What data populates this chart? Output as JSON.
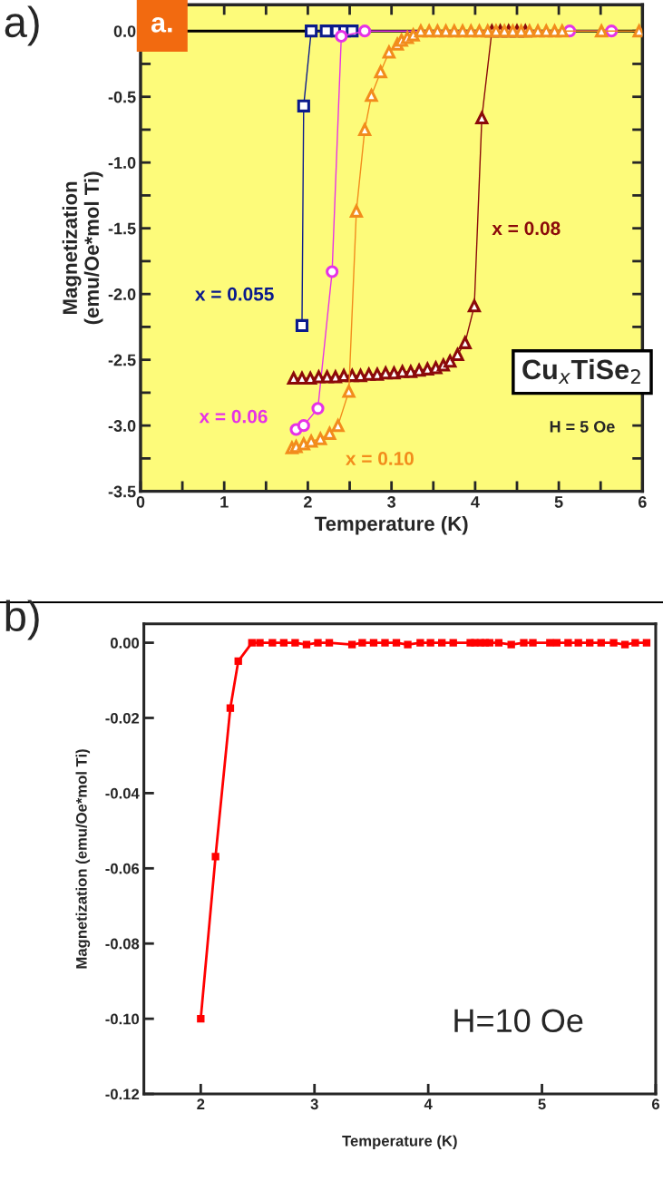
{
  "chart_data": [
    {
      "type": "line",
      "title": "a)",
      "xlabel": "Temperature (K)",
      "ylabel": "Magnetization\n(emu/Oe*mol Ti)",
      "xlim": [
        0,
        6
      ],
      "xticks": [
        0,
        {
          "value": 0.5,
          "label": null
        },
        1,
        {
          "value": 1.5,
          "label": null
        },
        2,
        {
          "value": 2.5,
          "label": null
        },
        3,
        {
          "value": 3.5,
          "label": null
        },
        4,
        {
          "value": 4.5,
          "label": null
        },
        5,
        {
          "value": 5.5,
          "label": null
        },
        6
      ],
      "ylim": [
        -3.5,
        0.2
      ],
      "yticks": [
        {
          "value": 0,
          "label": "0.0"
        },
        {
          "value": -0.25,
          "label": null
        },
        -0.5,
        {
          "value": -0.75,
          "label": null
        },
        {
          "value": -1,
          "label": "-1.0"
        },
        {
          "value": -1.25,
          "label": null
        },
        -1.5,
        {
          "value": -1.75,
          "label": null
        },
        {
          "value": -2,
          "label": "-2.0"
        },
        {
          "value": -2.25,
          "label": null
        },
        -2.5,
        {
          "value": -2.75,
          "label": null
        },
        {
          "value": -3,
          "label": "-3.0"
        },
        {
          "value": -3.25,
          "label": null
        },
        -3.5
      ],
      "grid": false,
      "line_style": "solid",
      "ref_lines": [
        {
          "axis": "y",
          "value": 0,
          "color": "#000000"
        }
      ],
      "annotations": [
        "a.",
        "Cu$_{x}$TiSe$_{2}$",
        "H = 5 Oe"
      ],
      "series": [
        {
          "name": "x = 0.055",
          "color": "#0a1a8c",
          "marker": "square",
          "x": [
            1.93,
            1.95,
            2.04,
            2.22,
            2.35,
            2.44,
            2.53
          ],
          "values": [
            -2.24,
            -0.57,
            0,
            0,
            0,
            0,
            0
          ]
        },
        {
          "name": "x = 0.06",
          "color": "#e632e6",
          "marker": "circle",
          "x": [
            1.86,
            1.95,
            2.12,
            2.29,
            2.4,
            2.68,
            5.13,
            5.63
          ],
          "values": [
            -3.03,
            -3.0,
            -2.87,
            -1.83,
            -0.04,
            0,
            0,
            0
          ]
        },
        {
          "name": "x = 0.08",
          "color": "#8b0a0a",
          "marker": "triangle",
          "x": [
            1.83,
            1.93,
            2.03,
            2.13,
            2.23,
            2.33,
            2.43,
            2.53,
            2.63,
            2.73,
            2.83,
            2.93,
            3.03,
            3.13,
            3.23,
            3.33,
            3.43,
            3.53,
            3.62,
            3.7,
            3.79,
            3.88,
            3.99,
            4.08,
            4.2,
            4.3,
            4.4,
            4.5,
            4.6
          ],
          "values": [
            -2.64,
            -2.64,
            -2.64,
            -2.63,
            -2.63,
            -2.63,
            -2.62,
            -2.62,
            -2.62,
            -2.61,
            -2.61,
            -2.6,
            -2.6,
            -2.59,
            -2.59,
            -2.58,
            -2.57,
            -2.56,
            -2.54,
            -2.51,
            -2.46,
            -2.37,
            -2.09,
            -0.66,
            0,
            0,
            0,
            0,
            0
          ]
        },
        {
          "name": "x = 0.10",
          "color": "#f28c1c",
          "marker": "triangle",
          "x": [
            1.81,
            1.86,
            1.95,
            2.04,
            2.15,
            2.26,
            2.36,
            2.49,
            2.58,
            2.68,
            2.76,
            2.87,
            2.97,
            3.07,
            3.12,
            3.19,
            3.26,
            3.35,
            3.45,
            3.55,
            3.65,
            3.75,
            3.85,
            3.95,
            4.05,
            4.15,
            4.25,
            4.35,
            4.45,
            4.55,
            4.65,
            4.75,
            4.85,
            4.95,
            5.04,
            5.51,
            5.96
          ],
          "values": [
            -3.17,
            -3.16,
            -3.14,
            -3.12,
            -3.1,
            -3.06,
            -3.0,
            -2.74,
            -1.37,
            -0.75,
            -0.49,
            -0.31,
            -0.16,
            -0.1,
            -0.07,
            -0.05,
            -0.03,
            0,
            0,
            0,
            0,
            0,
            0,
            0,
            0,
            0,
            0,
            0,
            0,
            0,
            0,
            0,
            0,
            0,
            0,
            0,
            0
          ]
        }
      ]
    },
    {
      "type": "line",
      "title": "b)",
      "xlabel": "Temperature (K)",
      "ylabel": "Magnetization (emu/Oe*mol Ti)",
      "xlim": [
        1.5,
        6
      ],
      "xticks": [
        2,
        3,
        4,
        5,
        6
      ],
      "ylim": [
        -0.12,
        0.005
      ],
      "yticks": [
        {
          "value": 0,
          "label": "0.00"
        },
        -0.02,
        -0.04,
        -0.06,
        -0.08,
        {
          "value": -0.1,
          "label": "-0.10"
        },
        -0.12
      ],
      "grid": false,
      "line_style": "solid",
      "marker": "square",
      "annotations": [
        "H=10 Oe"
      ],
      "series": [
        {
          "color": "#ff0000",
          "x": [
            2.0,
            2.13,
            2.26,
            2.33,
            2.45,
            2.52,
            2.63,
            2.73,
            2.83,
            2.93,
            3.03,
            3.13,
            3.33,
            3.42,
            3.52,
            3.62,
            3.72,
            3.82,
            3.93,
            4.02,
            4.12,
            4.22,
            4.37,
            4.41,
            4.46,
            4.5,
            4.54,
            4.62,
            4.73,
            4.84,
            4.92,
            5.07,
            5.13,
            5.23,
            5.32,
            5.42,
            5.52,
            5.63,
            5.73,
            5.82,
            5.92
          ],
          "values": [
            -0.1,
            -0.0569,
            -0.0174,
            -0.0049,
            0,
            0,
            0,
            0,
            0,
            -0.0005,
            0,
            0,
            -0.0005,
            0,
            0,
            0,
            0,
            -0.0005,
            0,
            0,
            0,
            0,
            0,
            0,
            0,
            0,
            0,
            0,
            -0.0005,
            0,
            0,
            0,
            0,
            0,
            0,
            0,
            0,
            0,
            -0.0005,
            0,
            0
          ]
        }
      ]
    }
  ]
}
